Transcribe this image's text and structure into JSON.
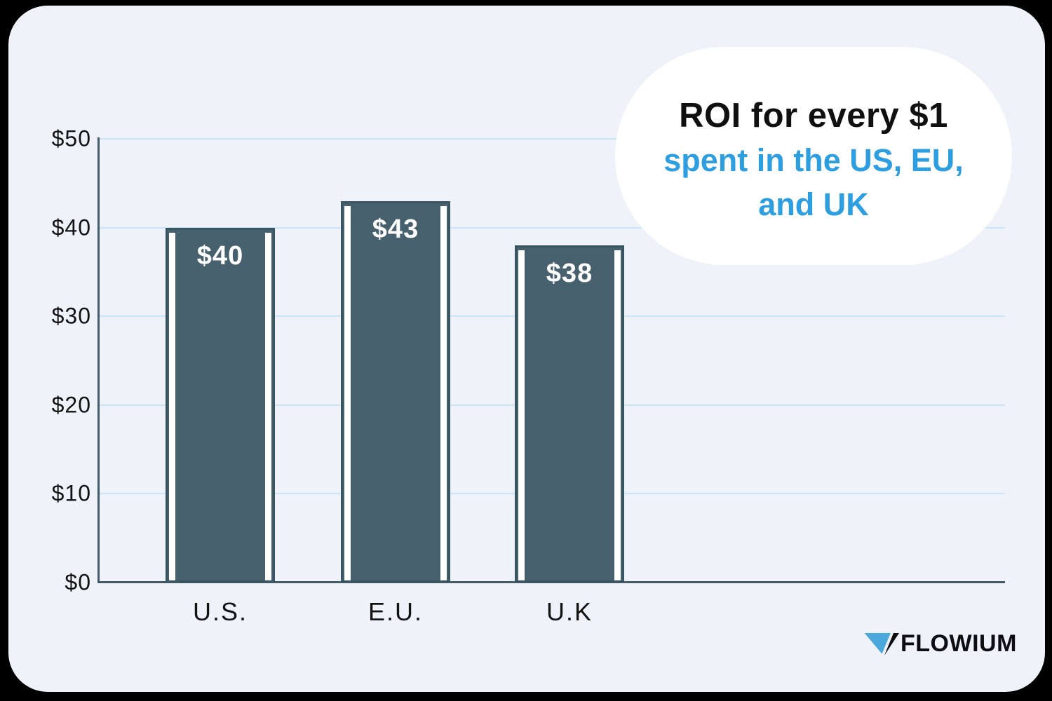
{
  "page": {
    "background": "#000000"
  },
  "card": {
    "background": "#F0F2F9"
  },
  "title_bubble": {
    "line1": "ROI for every $1",
    "line2": "spent in the US, EU,",
    "line3": "and UK",
    "background": "#FFFFFF",
    "line1_color": "#101010",
    "accent_color": "#2D9EE0"
  },
  "chart_data": {
    "type": "bar",
    "title": "ROI for every $1 spent in the US, EU, and UK",
    "categories": [
      "U.S.",
      "E.U.",
      "U.K"
    ],
    "values": [
      40,
      43,
      38
    ],
    "value_labels": [
      "$40",
      "$43",
      "$38"
    ],
    "xlabel": "",
    "ylabel": "",
    "ylim": [
      0,
      50
    ],
    "yticks": [
      0,
      10,
      20,
      30,
      40,
      50
    ],
    "ytick_labels": [
      "$0",
      "$10",
      "$20",
      "$30",
      "$40",
      "$50"
    ],
    "grid": true,
    "legend": false,
    "colors": {
      "bar_fill": "#47606E",
      "bar_border": "#3A5562",
      "bar_stripe": "#FFFFFF",
      "value_label": "#FFFFFF",
      "gridline": "#C8E6F7",
      "axis": "#415A68",
      "tick_text": "#121212"
    }
  },
  "logo": {
    "text": "FLOWIUM",
    "icon": "flowium-triangle-icon",
    "icon_blue": "#4BA7DC",
    "text_color": "#0D0D12"
  }
}
